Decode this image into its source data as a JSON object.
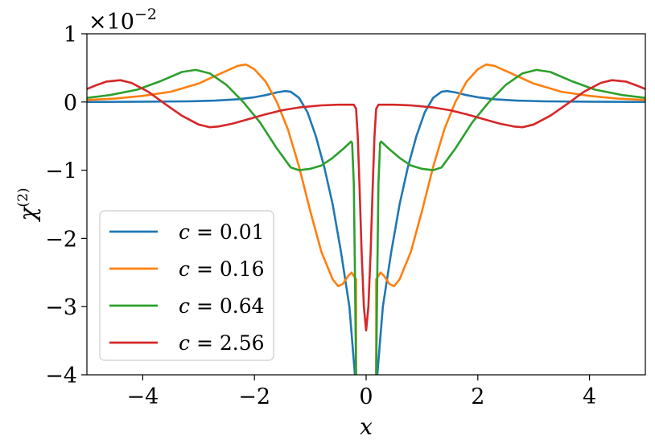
{
  "chart_data": {
    "type": "line",
    "xlabel": "x",
    "ylabel": "χ",
    "ylabel_superscript": "(2)",
    "offset_base": "×10",
    "offset_exponent": "−2",
    "xlim": [
      -5,
      5
    ],
    "ylim": [
      -4,
      1
    ],
    "x_ticks": [
      -4,
      -2,
      0,
      2,
      4
    ],
    "x_tick_labels": [
      "−4",
      "−2",
      "0",
      "2",
      "4"
    ],
    "y_ticks": [
      -4,
      -3,
      -2,
      -1,
      0,
      1
    ],
    "y_tick_labels": [
      "−4",
      "−3",
      "−2",
      "−1",
      "0",
      "1"
    ],
    "grid": false,
    "legend_position": "lower-left",
    "series": [
      {
        "name": "c = 0.01",
        "label_var": "c",
        "label_value": "= 0.01",
        "color": "#1f77b4",
        "points": [
          [
            0.2,
            -4.0
          ],
          [
            0.3,
            -3.0
          ],
          [
            0.45,
            -2.2
          ],
          [
            0.6,
            -1.5
          ],
          [
            0.75,
            -0.95
          ],
          [
            0.9,
            -0.5
          ],
          [
            1.05,
            -0.15
          ],
          [
            1.2,
            0.06
          ],
          [
            1.35,
            0.15
          ],
          [
            1.45,
            0.16
          ],
          [
            1.6,
            0.14
          ],
          [
            1.8,
            0.1
          ],
          [
            2.0,
            0.07
          ],
          [
            2.3,
            0.04
          ],
          [
            2.7,
            0.02
          ],
          [
            3.2,
            0.01
          ],
          [
            4.0,
            0.005
          ],
          [
            5.0,
            0.0
          ]
        ]
      },
      {
        "name": "c = 0.16",
        "label_var": "c",
        "label_value": "= 0.16",
        "color": "#ff7f0e",
        "points": [
          [
            0.18,
            -2.6
          ],
          [
            0.22,
            -2.55
          ],
          [
            0.26,
            -2.5
          ],
          [
            0.32,
            -2.55
          ],
          [
            0.42,
            -2.67
          ],
          [
            0.5,
            -2.7
          ],
          [
            0.6,
            -2.6
          ],
          [
            0.8,
            -2.2
          ],
          [
            1.0,
            -1.6
          ],
          [
            1.2,
            -0.95
          ],
          [
            1.4,
            -0.4
          ],
          [
            1.6,
            0.0
          ],
          [
            1.8,
            0.3
          ],
          [
            2.0,
            0.48
          ],
          [
            2.15,
            0.55
          ],
          [
            2.3,
            0.53
          ],
          [
            2.6,
            0.42
          ],
          [
            3.0,
            0.27
          ],
          [
            3.5,
            0.15
          ],
          [
            4.0,
            0.09
          ],
          [
            4.5,
            0.05
          ],
          [
            5.0,
            0.03
          ]
        ]
      },
      {
        "name": "c = 0.64",
        "label_var": "c",
        "label_value": "= 0.64",
        "color": "#2ca02c",
        "points": [
          [
            0.18,
            -4.0
          ],
          [
            0.2,
            -2.5
          ],
          [
            0.22,
            -1.2
          ],
          [
            0.25,
            -0.6
          ],
          [
            0.27,
            -0.58
          ],
          [
            0.4,
            -0.68
          ],
          [
            0.6,
            -0.82
          ],
          [
            0.8,
            -0.93
          ],
          [
            1.0,
            -0.98
          ],
          [
            1.2,
            -1.0
          ],
          [
            1.35,
            -0.96
          ],
          [
            1.6,
            -0.68
          ],
          [
            1.9,
            -0.3
          ],
          [
            2.2,
            0.0
          ],
          [
            2.5,
            0.25
          ],
          [
            2.8,
            0.42
          ],
          [
            3.05,
            0.47
          ],
          [
            3.3,
            0.44
          ],
          [
            3.7,
            0.3
          ],
          [
            4.1,
            0.18
          ],
          [
            4.6,
            0.1
          ],
          [
            5.0,
            0.06
          ]
        ]
      },
      {
        "name": "c = 2.56",
        "label_var": "c",
        "label_value": "= 2.56",
        "color": "#d62728",
        "points": [
          [
            0.0,
            -3.35
          ],
          [
            0.04,
            -3.0
          ],
          [
            0.08,
            -2.2
          ],
          [
            0.12,
            -1.2
          ],
          [
            0.15,
            -0.5
          ],
          [
            0.18,
            -0.1
          ],
          [
            0.22,
            -0.04
          ],
          [
            0.5,
            -0.04
          ],
          [
            0.8,
            -0.05
          ],
          [
            1.2,
            -0.08
          ],
          [
            1.5,
            -0.12
          ],
          [
            1.8,
            -0.18
          ],
          [
            2.1,
            -0.25
          ],
          [
            2.4,
            -0.32
          ],
          [
            2.65,
            -0.36
          ],
          [
            2.8,
            -0.37
          ],
          [
            3.0,
            -0.33
          ],
          [
            3.3,
            -0.2
          ],
          [
            3.6,
            -0.03
          ],
          [
            3.9,
            0.15
          ],
          [
            4.2,
            0.28
          ],
          [
            4.4,
            0.32
          ],
          [
            4.65,
            0.3
          ],
          [
            4.85,
            0.24
          ],
          [
            5.0,
            0.19
          ]
        ]
      }
    ]
  }
}
